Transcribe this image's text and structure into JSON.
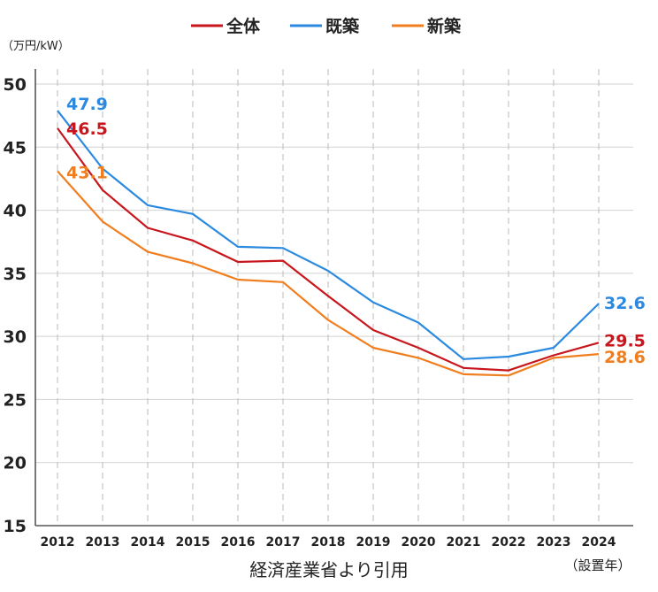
{
  "chart_data": {
    "type": "line",
    "title": "",
    "ylabel": "（万円/kW）",
    "xlabel": "（設置年）",
    "source_note": "経済産業省より引用",
    "x": [
      "2012",
      "2013",
      "2014",
      "2015",
      "2016",
      "2017",
      "2018",
      "2019",
      "2020",
      "2021",
      "2022",
      "2023",
      "2024"
    ],
    "ylim": [
      15,
      50
    ],
    "yticks": [
      "15",
      "20",
      "25",
      "30",
      "35",
      "40",
      "45",
      "50"
    ],
    "grid": true,
    "legend_position": "top-center",
    "series": [
      {
        "name": "全体",
        "color": "#c8161d",
        "values": [
          46.5,
          41.6,
          38.6,
          37.6,
          35.9,
          36.0,
          33.2,
          30.5,
          29.1,
          27.5,
          27.3,
          28.5,
          29.5
        ],
        "start_label": "46.5",
        "end_label": "29.5"
      },
      {
        "name": "既築",
        "color": "#2b8ae0",
        "values": [
          47.9,
          43.3,
          40.4,
          39.7,
          37.1,
          37.0,
          35.2,
          32.7,
          31.1,
          28.2,
          28.4,
          29.1,
          32.6
        ],
        "start_label": "47.9",
        "end_label": "32.6"
      },
      {
        "name": "新築",
        "color": "#f07e1e",
        "values": [
          43.1,
          39.1,
          36.7,
          35.8,
          34.5,
          34.3,
          31.3,
          29.1,
          28.3,
          27.0,
          26.9,
          28.3,
          28.6
        ],
        "start_label": "43.1",
        "end_label": "28.6"
      }
    ]
  }
}
